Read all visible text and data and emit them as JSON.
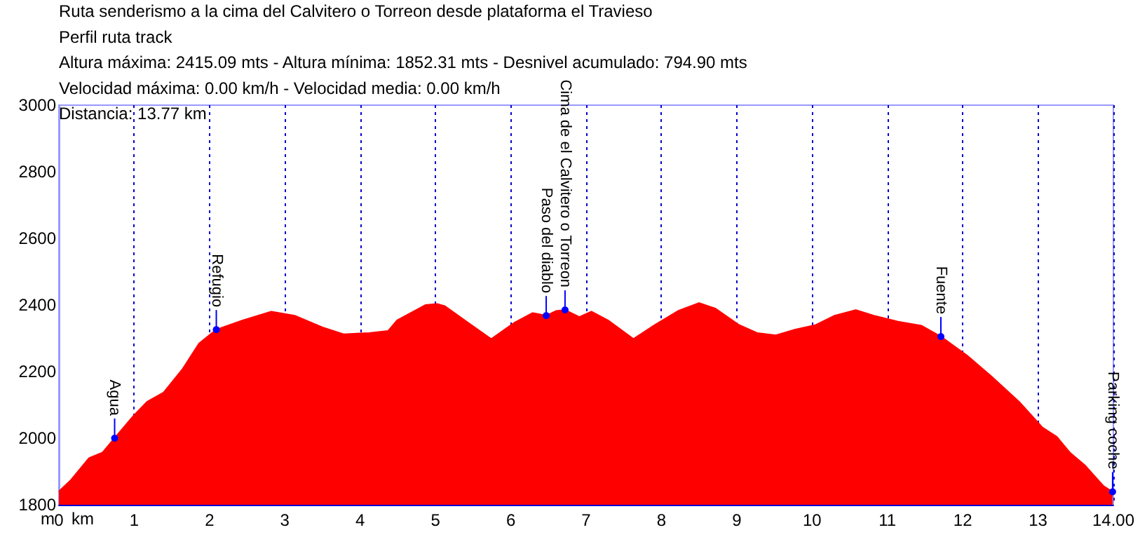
{
  "chart_data": {
    "type": "area",
    "title": "Ruta senderismo a la cima del Calvitero o Torreon desde plataforma el Travieso",
    "subtitle": "Perfil ruta track",
    "xlabel": "km",
    "ylabel": "m",
    "annotations": [
      "Altura máxima: 2415.09 mts - Altura mínima: 1852.31 mts - Desnivel acumulado: 794.90 mts",
      "Velocidad máxima: 0.00 km/h - Velocidad media: 0.00 km/h",
      "Distancia: 13.77 km",
      {
        "text": "Agua",
        "x": 0.74,
        "y": 2000
      },
      {
        "text": "Refugio",
        "x": 2.09,
        "y": 2326
      },
      {
        "text": "Paso del diablo",
        "x": 6.47,
        "y": 2368
      },
      {
        "text": "Cima de el Calvitero o Torreon",
        "x": 6.72,
        "y": 2385
      },
      {
        "text": "Fuente",
        "x": 11.71,
        "y": 2305
      },
      {
        "text": "Parking coche",
        "x": 13.99,
        "y": 1839
      }
    ],
    "series": [
      {
        "color": "#ff0000",
        "x": [
          0,
          0.15,
          0.4,
          0.58,
          0.74,
          0.99,
          1.17,
          1.39,
          1.64,
          1.86,
          2.09,
          2.44,
          2.82,
          3.13,
          3.5,
          3.78,
          4.12,
          4.37,
          4.49,
          4.87,
          5.02,
          5.12,
          5.43,
          5.74,
          6.05,
          6.29,
          6.47,
          6.6,
          6.72,
          6.91,
          7.07,
          7.29,
          7.63,
          7.91,
          8.22,
          8.5,
          8.72,
          9.03,
          9.27,
          9.52,
          9.77,
          10.05,
          10.3,
          10.58,
          10.82,
          11.14,
          11.45,
          11.71,
          12.07,
          12.38,
          12.75,
          13.06,
          13.25,
          13.43,
          13.62,
          13.87,
          13.99
        ],
        "values": [
          1840,
          1872,
          1940,
          1957,
          2000,
          2067,
          2109,
          2137,
          2207,
          2284,
          2326,
          2354,
          2380,
          2368,
          2333,
          2312,
          2316,
          2322,
          2354,
          2400,
          2403,
          2397,
          2347,
          2298,
          2347,
          2376,
          2368,
          2382,
          2385,
          2364,
          2380,
          2354,
          2298,
          2340,
          2382,
          2406,
          2389,
          2340,
          2316,
          2309,
          2326,
          2340,
          2368,
          2385,
          2368,
          2350,
          2338,
          2305,
          2246,
          2186,
          2109,
          2032,
          2004,
          1955,
          1919,
          1856,
          1839
        ]
      }
    ],
    "xlim": [
      0,
      14
    ],
    "xticks": [
      0,
      1,
      2,
      3,
      4,
      5,
      6,
      7,
      8,
      9,
      10,
      11,
      12,
      13,
      {
        "value": 14,
        "label": "14.00"
      }
    ],
    "ylim": [
      1800,
      3000
    ],
    "yticks": [
      1800,
      2000,
      2200,
      2400,
      2600,
      2800,
      3000
    ],
    "grid": "x",
    "marker": "none"
  }
}
